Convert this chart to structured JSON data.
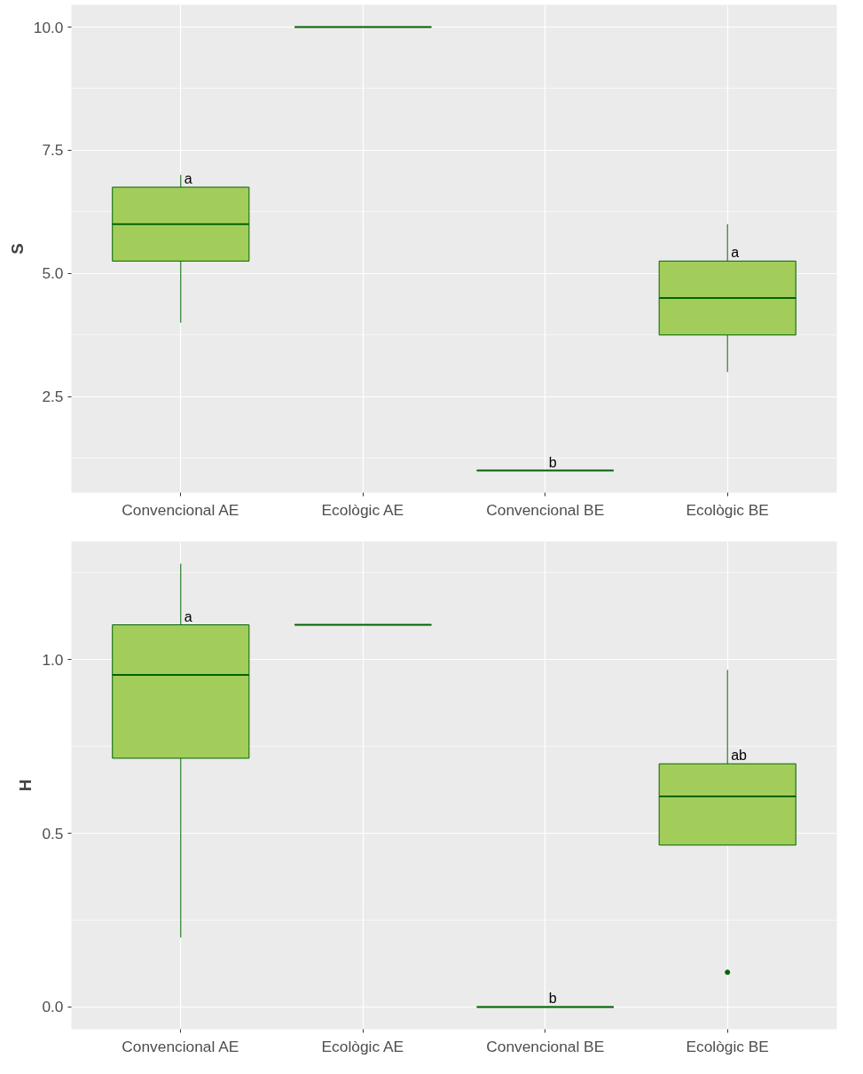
{
  "chart_data": [
    {
      "type": "box",
      "ylabel": "S",
      "categories": [
        "Convencional AE",
        "Ecològic AE",
        "Convencional BE",
        "Ecològic BE"
      ],
      "boxes": [
        {
          "low": 4,
          "q1": 5.25,
          "median": 6,
          "q3": 6.75,
          "high": 7
        },
        {
          "low": 10,
          "q1": 10,
          "median": 10,
          "q3": 10,
          "high": 10
        },
        {
          "low": 1,
          "q1": 1,
          "median": 1,
          "q3": 1,
          "high": 1
        },
        {
          "low": 3,
          "q1": 3.75,
          "median": 4.5,
          "q3": 5.25,
          "high": 6
        }
      ],
      "colors": [
        "#a3cd5b",
        "#006400",
        "#006400",
        "#a3cd5b"
      ],
      "ylim": [
        0.55,
        10.45
      ],
      "yticks": [
        {
          "value": 2.5,
          "label": "2.5"
        },
        {
          "value": 5,
          "label": "5.0"
        },
        {
          "value": 7.5,
          "label": "7.5"
        },
        {
          "value": 10,
          "label": "10.0"
        }
      ],
      "grid": true,
      "annotations": [
        {
          "text": "a",
          "x": "Convencional AE",
          "y": 6.75
        },
        {
          "text": "b",
          "x": "Convencional BE",
          "y": 1
        },
        {
          "text": "a",
          "x": "Ecològic BE",
          "y": 5.25
        }
      ]
    },
    {
      "type": "box",
      "ylabel": "H",
      "categories": [
        "Convencional AE",
        "Ecològic AE",
        "Convencional BE",
        "Ecològic BE"
      ],
      "boxes": [
        {
          "low": 0.2,
          "q1": 0.716,
          "median": 0.956,
          "q3": 1.1,
          "high": 1.276
        },
        {
          "low": 1.1,
          "q1": 1.1,
          "median": 1.1,
          "q3": 1.1,
          "high": 1.1
        },
        {
          "low": 0,
          "q1": 0,
          "median": 0,
          "q3": 0,
          "high": 0
        },
        {
          "low": 0.466,
          "q1": 0.466,
          "median": 0.606,
          "q3": 0.7,
          "high": 0.97,
          "outliers": [
            0.1
          ]
        }
      ],
      "colors": [
        "#a3cd5b",
        "#006400",
        "#006400",
        "#a3cd5b"
      ],
      "ylim": [
        -0.064,
        1.34
      ],
      "yticks": [
        {
          "value": 0,
          "label": "0.0"
        },
        {
          "value": 0.5,
          "label": "0.5"
        },
        {
          "value": 1,
          "label": "1.0"
        }
      ],
      "grid": true,
      "annotations": [
        {
          "text": "a",
          "x": "Convencional AE",
          "y": 1.1
        },
        {
          "text": "b",
          "x": "Convencional BE",
          "y": 0
        },
        {
          "text": "ab",
          "x": "Ecològic BE",
          "y": 0.7
        }
      ]
    }
  ]
}
